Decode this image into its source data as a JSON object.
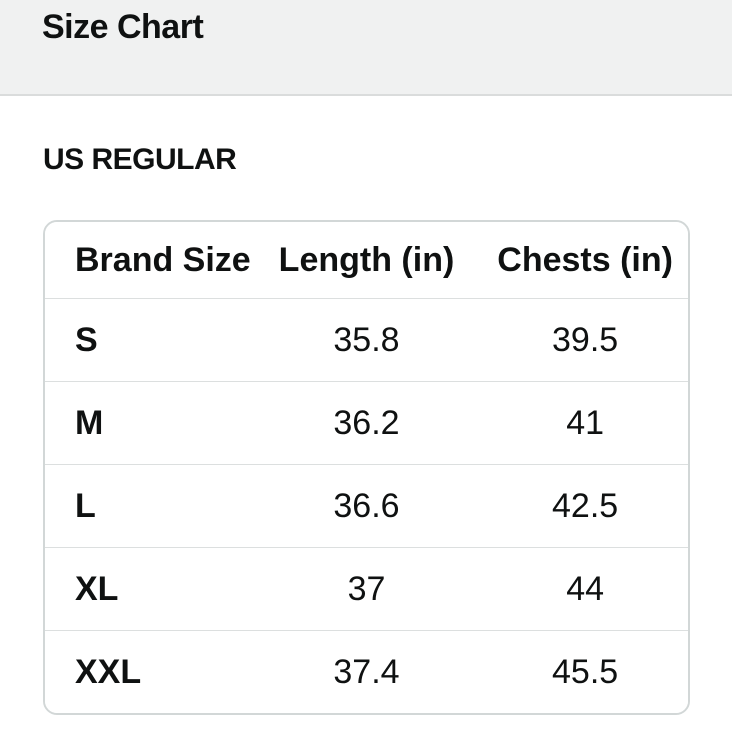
{
  "header": {
    "title": "Size Chart"
  },
  "section": {
    "title": "US REGULAR"
  },
  "size_table": {
    "columns": [
      "Brand Size",
      "Length (in)",
      "Chests (in)"
    ],
    "rows": [
      {
        "brand_size": "S",
        "length_in": "35.8",
        "chests_in": "39.5"
      },
      {
        "brand_size": "M",
        "length_in": "36.2",
        "chests_in": "41"
      },
      {
        "brand_size": "L",
        "length_in": "36.6",
        "chests_in": "42.5"
      },
      {
        "brand_size": "XL",
        "length_in": "37",
        "chests_in": "44"
      },
      {
        "brand_size": "XXL",
        "length_in": "37.4",
        "chests_in": "45.5"
      }
    ]
  },
  "colors": {
    "band_background": "#f0f1f1",
    "band_border": "#dadcdc",
    "table_border": "#d2d7d7",
    "row_divider": "#dcdfdf",
    "text": "#0f1111",
    "page_background": "#ffffff"
  }
}
